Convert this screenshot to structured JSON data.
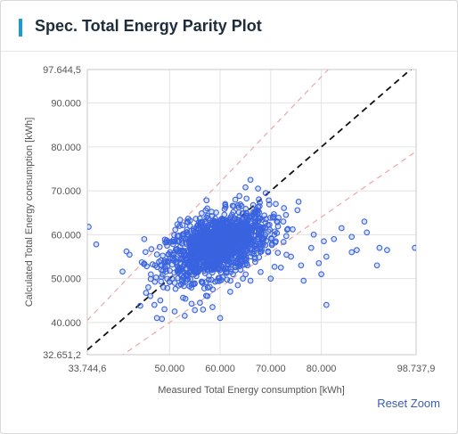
{
  "panel": {
    "title": "Spec. Total Energy Parity Plot",
    "reset_zoom_label": "Reset Zoom",
    "accent_color": "#1a9bd7"
  },
  "chart_data": {
    "type": "scatter",
    "title": "",
    "xlabel": "Measured Total Energy consumption [kWh]",
    "ylabel": "Calculated Total Energy consumption [kWh]",
    "xlim": [
      33744.6,
      98737.9
    ],
    "ylim": [
      32651.2,
      97644.5
    ],
    "x_ticks": [
      {
        "value": 33744.6,
        "label": "33.744,6"
      },
      {
        "value": 50000,
        "label": "50.000"
      },
      {
        "value": 60000,
        "label": "60.000"
      },
      {
        "value": 70000,
        "label": "70.000"
      },
      {
        "value": 80000,
        "label": "80.000"
      },
      {
        "value": 98737.9,
        "label": "98.737,9"
      }
    ],
    "y_ticks": [
      {
        "value": 32651.2,
        "label": "32.651,2"
      },
      {
        "value": 40000,
        "label": "40.000"
      },
      {
        "value": 50000,
        "label": "50.000"
      },
      {
        "value": 60000,
        "label": "60.000"
      },
      {
        "value": 70000,
        "label": "70.000"
      },
      {
        "value": 80000,
        "label": "80.000"
      },
      {
        "value": 90000,
        "label": "90.000"
      },
      {
        "value": 97644.5,
        "label": "97.644,5"
      }
    ],
    "grid": true,
    "reference_lines": [
      {
        "name": "parity",
        "slope": 1.0,
        "color": "#111111",
        "dash": "dashed"
      },
      {
        "name": "upper bound",
        "slope": 1.2,
        "color": "#e8a0a0",
        "dash": "dashed"
      },
      {
        "name": "lower bound",
        "slope": 0.8,
        "color": "#e8a0a0",
        "dash": "dashed"
      }
    ],
    "point_color": "#3a63e0",
    "cluster": {
      "center": [
        59500,
        57500
      ],
      "spread": [
        5000,
        3800
      ]
    },
    "series": [
      {
        "values": [
          [
            34000,
            61800
          ],
          [
            35500,
            57800
          ],
          [
            41500,
            56200
          ],
          [
            45000,
            59000
          ],
          [
            44200,
            43800
          ],
          [
            45500,
            52800
          ],
          [
            45800,
            48000
          ],
          [
            46200,
            46000
          ],
          [
            47000,
            44000
          ],
          [
            47500,
            41000
          ],
          [
            48500,
            40800
          ],
          [
            49000,
            43000
          ],
          [
            51000,
            42500
          ],
          [
            53000,
            41500
          ],
          [
            55000,
            42800
          ],
          [
            56000,
            44500
          ],
          [
            57500,
            46000
          ],
          [
            58500,
            43500
          ],
          [
            62000,
            47000
          ],
          [
            63500,
            48500
          ],
          [
            66000,
            49500
          ],
          [
            68000,
            51500
          ],
          [
            70000,
            50000
          ],
          [
            72000,
            52500
          ],
          [
            74000,
            55000
          ],
          [
            76000,
            53000
          ],
          [
            78000,
            57000
          ],
          [
            79500,
            53500
          ],
          [
            81000,
            55000
          ],
          [
            80500,
            58500
          ],
          [
            82500,
            59000
          ],
          [
            84000,
            61500
          ],
          [
            86000,
            56000
          ],
          [
            87000,
            56500
          ],
          [
            86000,
            59500
          ],
          [
            88500,
            63000
          ],
          [
            89000,
            60500
          ],
          [
            91000,
            53000
          ],
          [
            91500,
            57000
          ],
          [
            93000,
            56500
          ],
          [
            98500,
            57000
          ],
          [
            81000,
            44000
          ],
          [
            76500,
            49500
          ],
          [
            73000,
            64500
          ],
          [
            75500,
            67500
          ],
          [
            71000,
            67000
          ],
          [
            69000,
            69500
          ],
          [
            67500,
            70500
          ],
          [
            66000,
            72500
          ],
          [
            65000,
            70800
          ],
          [
            63000,
            68000
          ],
          [
            61000,
            67000
          ],
          [
            72500,
            63000
          ],
          [
            71000,
            58500
          ],
          [
            69500,
            56000
          ],
          [
            47500,
            55500
          ],
          [
            49500,
            57500
          ],
          [
            52500,
            49500
          ],
          [
            50500,
            50000
          ],
          [
            60000,
            41000
          ],
          [
            64500,
            50000
          ],
          [
            52000,
            62000
          ],
          [
            53500,
            63000
          ],
          [
            78500,
            60000
          ],
          [
            80000,
            51000
          ]
        ]
      }
    ]
  }
}
